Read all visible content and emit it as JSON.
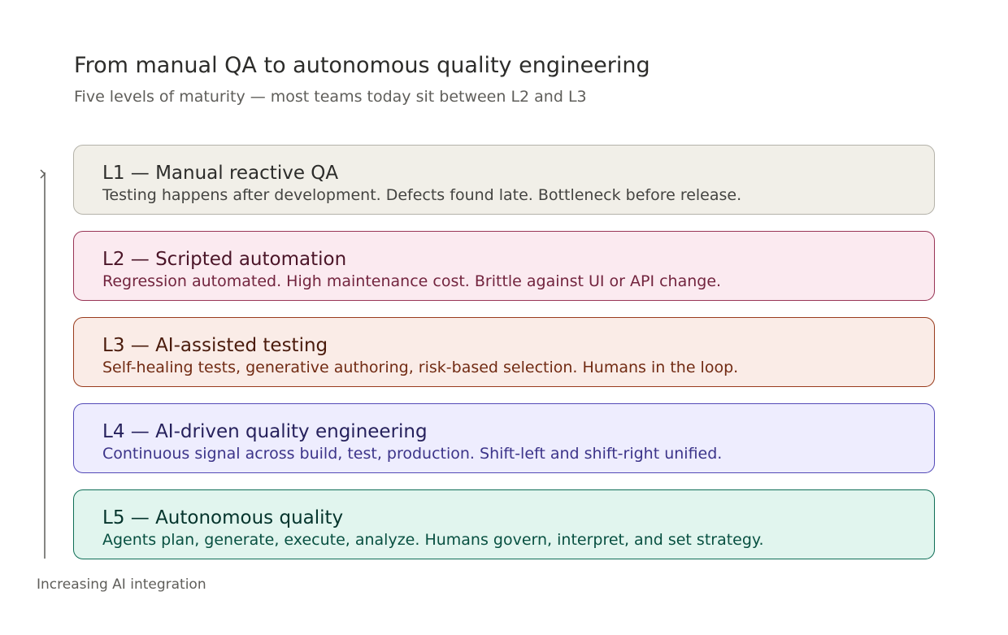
{
  "header": {
    "title": "From manual QA to autonomous quality engineering",
    "subtitle": "Five levels of maturity — most teams today sit between L2 and L3"
  },
  "axis": {
    "label": "Increasing AI integration",
    "color": "#5f5e5a"
  },
  "levels": [
    {
      "title": "L1 — Manual reactive QA",
      "description": "Testing happens after development. Defects found late. Bottleneck before release.",
      "fill": "#f1efe8",
      "border": "#b4b2a9",
      "title_color": "#2c2c2a",
      "text_color": "#444441"
    },
    {
      "title": "L2 — Scripted automation",
      "description": "Regression automated. High maintenance cost. Brittle against UI or API change.",
      "fill": "#fbeaf0",
      "border": "#993556",
      "title_color": "#4b1528",
      "text_color": "#72243e"
    },
    {
      "title": "L3 — AI-assisted testing",
      "description": "Self-healing tests, generative authoring, risk-based selection. Humans in the loop.",
      "fill": "#faece7",
      "border": "#993c1d",
      "title_color": "#4a1b0c",
      "text_color": "#712b13"
    },
    {
      "title": "L4 — AI-driven quality engineering",
      "description": "Continuous signal across build, test, production. Shift-left and shift-right unified.",
      "fill": "#eeedfe",
      "border": "#534ab7",
      "title_color": "#26215c",
      "text_color": "#3c3489"
    },
    {
      "title": "L5 — Autonomous quality",
      "description": "Agents plan, generate, execute, analyze. Humans govern, interpret, and set strategy.",
      "fill": "#e1f5ee",
      "border": "#0f6e56",
      "title_color": "#04342c",
      "text_color": "#085041"
    }
  ]
}
